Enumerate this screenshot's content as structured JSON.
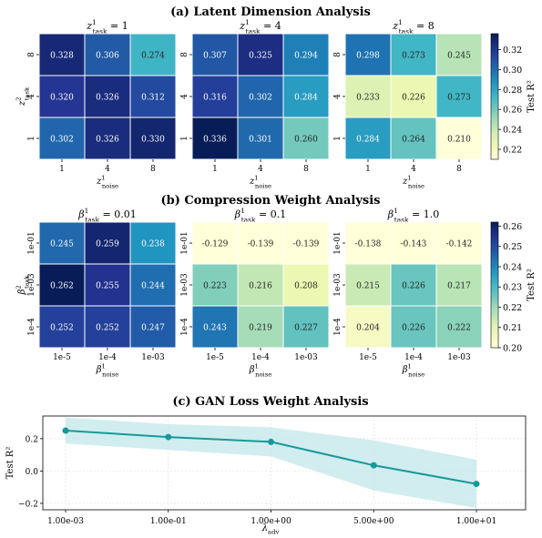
{
  "chart_data": [
    {
      "type": "heatmap",
      "title": "(a) Latent Dimension Analysis",
      "colorbar": {
        "label": "Test R²",
        "ticks": [
          "0.32",
          "0.30",
          "0.28",
          "0.26",
          "0.24",
          "0.22"
        ],
        "range": [
          0.21,
          0.336
        ]
      },
      "ylabel_main": "z",
      "ylabel_sup": "2",
      "ylabel_sub": "task",
      "xlabel_main": "z",
      "xlabel_sup": "1",
      "xlabel_sub": "noise",
      "x_categories": [
        "1",
        "4",
        "8"
      ],
      "y_categories": [
        "8",
        "4",
        "1"
      ],
      "panels": [
        {
          "title_main": "z",
          "title_sup": "1",
          "title_sub": "task",
          "title_val": " = 1",
          "values": [
            [
              0.328,
              0.306,
              0.274
            ],
            [
              0.32,
              0.326,
              0.312
            ],
            [
              0.302,
              0.326,
              0.33
            ]
          ],
          "labels": [
            [
              "0.328",
              "0.306",
              "0.274"
            ],
            [
              "0.320",
              "0.326",
              "0.312"
            ],
            [
              "0.302",
              "0.326",
              "0.330"
            ]
          ]
        },
        {
          "title_main": "z",
          "title_sup": "1",
          "title_sub": "task",
          "title_val": " = 4",
          "values": [
            [
              0.307,
              0.325,
              0.294
            ],
            [
              0.316,
              0.302,
              0.284
            ],
            [
              0.336,
              0.301,
              0.26
            ]
          ],
          "labels": [
            [
              "0.307",
              "0.325",
              "0.294"
            ],
            [
              "0.316",
              "0.302",
              "0.284"
            ],
            [
              "0.336",
              "0.301",
              "0.260"
            ]
          ]
        },
        {
          "title_main": "z",
          "title_sup": "1",
          "title_sub": "task",
          "title_val": " = 8",
          "values": [
            [
              0.298,
              0.273,
              0.245
            ],
            [
              0.233,
              0.226,
              0.273
            ],
            [
              0.284,
              0.264,
              0.21
            ]
          ],
          "labels": [
            [
              "0.298",
              "0.273",
              "0.245"
            ],
            [
              "0.233",
              "0.226",
              "0.273"
            ],
            [
              "0.284",
              "0.264",
              "0.210"
            ]
          ]
        }
      ]
    },
    {
      "type": "heatmap",
      "title": "(b) Compression Weight Analysis",
      "colorbar": {
        "label": "Test R²",
        "ticks": [
          "0.26",
          "0.25",
          "0.24",
          "0.23",
          "0.22",
          "0.21",
          "0.20"
        ],
        "range": [
          0.2,
          0.262
        ]
      },
      "ylabel_main": "β",
      "ylabel_sup": "2",
      "ylabel_sub": "task",
      "xlabel_main": "β",
      "xlabel_sup": "1",
      "xlabel_sub": "noise",
      "x_categories": [
        "1e-5",
        "1e-4",
        "1e-03"
      ],
      "y_categories": [
        "1e-01",
        "1e-03",
        "1e-4"
      ],
      "panels": [
        {
          "title_main": "β",
          "title_sup": "1",
          "title_sub": "task",
          "title_val": " = 0.01",
          "values": [
            [
              0.245,
              0.259,
              0.238
            ],
            [
              0.262,
              0.255,
              0.244
            ],
            [
              0.252,
              0.252,
              0.247
            ]
          ],
          "labels": [
            [
              "0.245",
              "0.259",
              "0.238"
            ],
            [
              "0.262",
              "0.255",
              "0.244"
            ],
            [
              "0.252",
              "0.252",
              "0.247"
            ]
          ]
        },
        {
          "title_main": "β",
          "title_sup": "1",
          "title_sub": "task",
          "title_val": " = 0.1",
          "values": [
            [
              -0.129,
              -0.139,
              -0.139
            ],
            [
              0.223,
              0.216,
              0.208
            ],
            [
              0.243,
              0.219,
              0.227
            ]
          ],
          "labels": [
            [
              "-0.129",
              "-0.139",
              "-0.139"
            ],
            [
              "0.223",
              "0.216",
              "0.208"
            ],
            [
              "0.243",
              "0.219",
              "0.227"
            ]
          ]
        },
        {
          "title_main": "β",
          "title_sup": "1",
          "title_sub": "task",
          "title_val": " = 1.0",
          "values": [
            [
              -0.138,
              -0.143,
              -0.142
            ],
            [
              0.215,
              0.226,
              0.217
            ],
            [
              0.204,
              0.226,
              0.222
            ]
          ],
          "labels": [
            [
              "-0.138",
              "-0.143",
              "-0.142"
            ],
            [
              "0.215",
              "0.226",
              "0.217"
            ],
            [
              "0.204",
              "0.226",
              "0.222"
            ]
          ]
        }
      ]
    },
    {
      "type": "line",
      "title": "(c) GAN Loss Weight Analysis",
      "ylabel": "Test R²",
      "xlabel_main": "λ",
      "xlabel_sub": "adv",
      "categories": [
        "1.00e-03",
        "1.00e-01",
        "1.00e+00",
        "5.00e+00",
        "1.00e+01"
      ],
      "series": [
        {
          "values": [
            0.25,
            0.21,
            0.18,
            0.035,
            -0.08
          ],
          "lower": [
            0.17,
            0.13,
            0.09,
            -0.12,
            -0.23
          ],
          "upper": [
            0.33,
            0.29,
            0.27,
            0.19,
            0.07
          ]
        }
      ],
      "ylim": [
        -0.24,
        0.34
      ],
      "yticks": [
        {
          "v": -0.2,
          "t": "−0.2"
        },
        {
          "v": 0.0,
          "t": "0.0"
        },
        {
          "v": 0.2,
          "t": "0.2"
        }
      ],
      "grid": true,
      "colors": {
        "line": "#17999a",
        "band": "#bfe6e8"
      }
    }
  ]
}
